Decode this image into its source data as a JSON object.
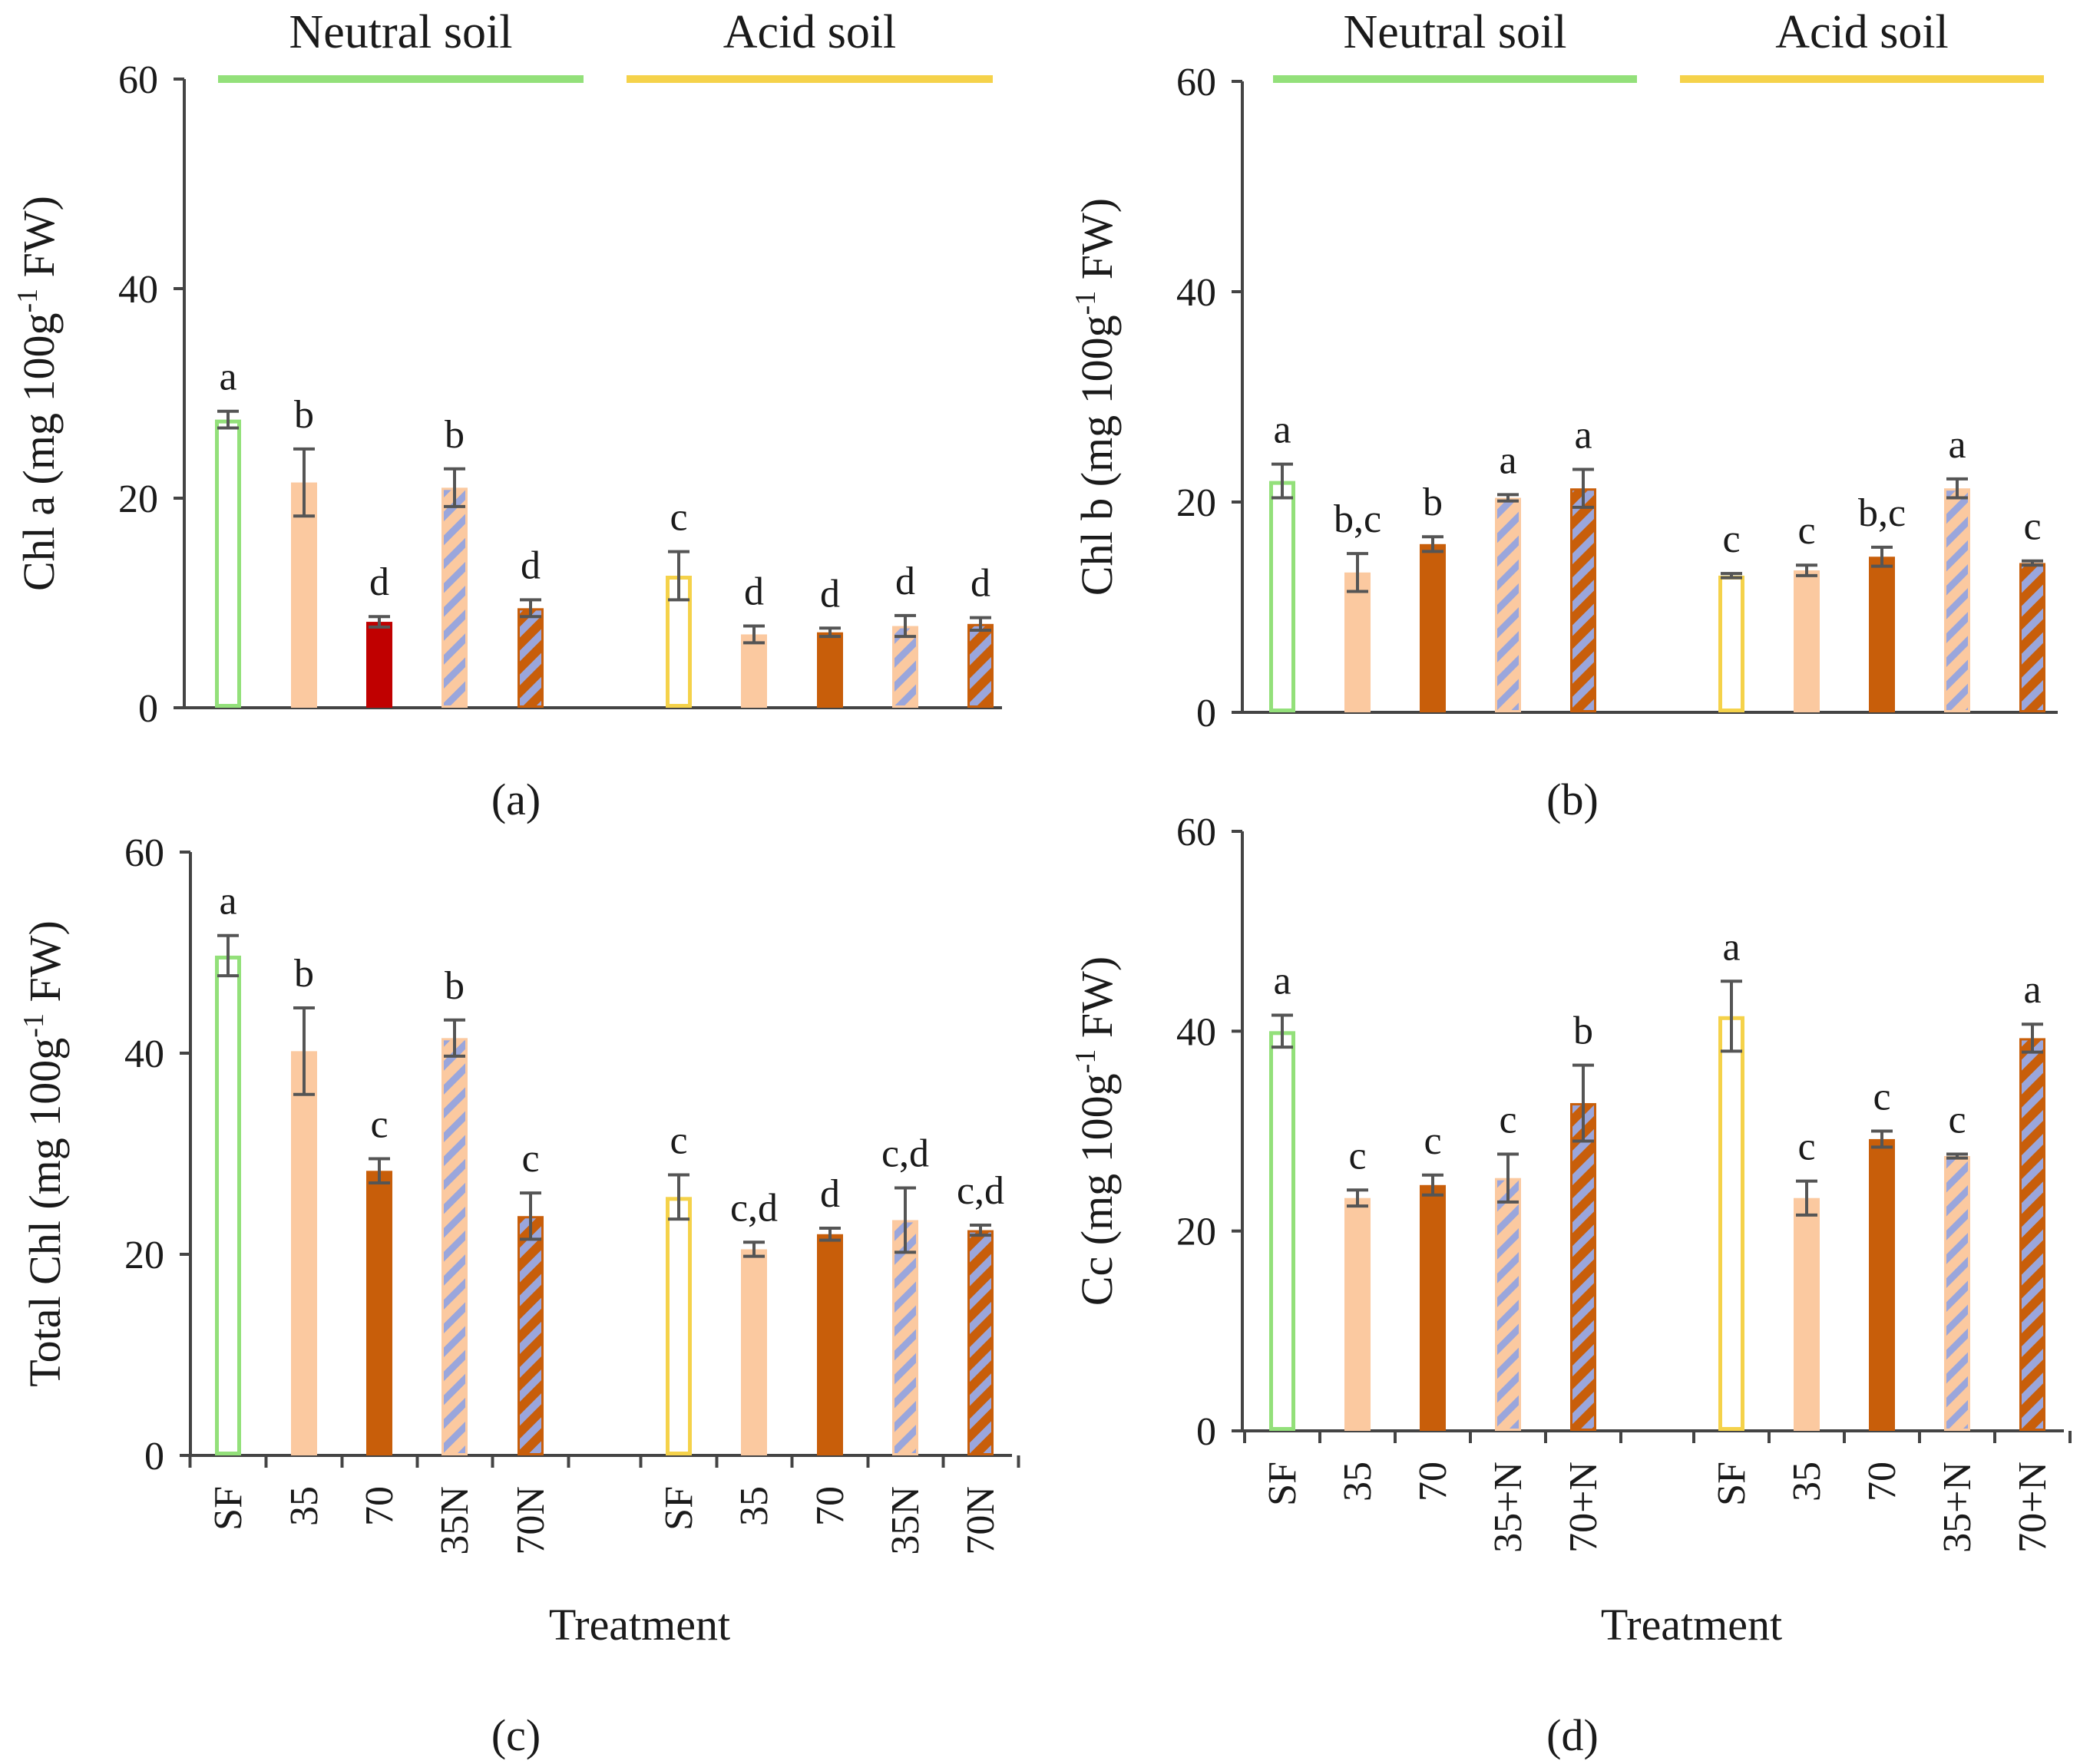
{
  "chart_data": [
    {
      "type": "bar",
      "panel_label": "(a)",
      "ylabel": "Chl a (mg 100g-1 FW)",
      "ylabel_main": "Chl a (mg 100g",
      "ylabel_sup": "-1",
      "ylabel_end": " FW)",
      "ylim": [
        0,
        60
      ],
      "yticks": [
        "0",
        "20",
        "40",
        "60"
      ],
      "xlabel": "",
      "group_titles": [
        "Neutral soil",
        "Acid soil"
      ],
      "categories": [
        "SF",
        "35",
        "70",
        "35N",
        "70N"
      ],
      "show_category_labels": false,
      "groups": [
        {
          "values": [
            27.5,
            21.5,
            8.2,
            21.0,
            9.5
          ],
          "errors": [
            0.8,
            3.2,
            0.5,
            1.8,
            0.8
          ],
          "letters": [
            "a",
            "b",
            "d",
            "b",
            "d"
          ]
        },
        {
          "values": [
            12.6,
            7.0,
            7.2,
            7.8,
            8.0
          ],
          "errors": [
            2.3,
            0.8,
            0.4,
            1.0,
            0.6
          ],
          "letters": [
            "c",
            "d",
            "d",
            "d",
            "d"
          ]
        }
      ]
    },
    {
      "type": "bar",
      "panel_label": "(b)",
      "ylabel": "Chl b (mg 100g-1 FW)",
      "ylabel_main": "Chl b (mg 100g",
      "ylabel_sup": "-1",
      "ylabel_end": " FW)",
      "ylim": [
        0,
        60
      ],
      "yticks": [
        "0",
        "20",
        "40",
        "60"
      ],
      "xlabel": "",
      "group_titles": [
        "Neutral soil",
        "Acid soil"
      ],
      "categories": [
        "SF",
        "35",
        "70",
        "35+N",
        "70+N"
      ],
      "show_category_labels": false,
      "groups": [
        {
          "values": [
            22.0,
            13.3,
            16.0,
            20.4,
            21.3
          ],
          "errors": [
            1.6,
            1.8,
            0.7,
            0.3,
            1.8
          ],
          "letters": [
            "a",
            "b,c",
            "b",
            "a",
            "a"
          ]
        },
        {
          "values": [
            13.0,
            13.5,
            14.8,
            21.3,
            14.2
          ],
          "errors": [
            0.2,
            0.5,
            0.9,
            0.9,
            0.2
          ],
          "letters": [
            "c",
            "c",
            "b,c",
            "a",
            "c"
          ]
        }
      ]
    },
    {
      "type": "bar",
      "panel_label": "(c)",
      "ylabel": "Total Chl (mg 100g-1 FW)",
      "ylabel_main": "Total Chl (mg 100g",
      "ylabel_sup": "-1",
      "ylabel_end": " FW)",
      "ylim": [
        0,
        60
      ],
      "yticks": [
        "0",
        "20",
        "40",
        "60"
      ],
      "xlabel": "Treatment",
      "group_titles": [],
      "categories": [
        "SF",
        "35",
        "70",
        "35N",
        "70N"
      ],
      "show_category_labels": true,
      "groups": [
        {
          "values": [
            49.7,
            40.2,
            28.3,
            41.5,
            23.8
          ],
          "errors": [
            2.0,
            4.3,
            1.2,
            1.8,
            2.3
          ],
          "letters": [
            "a",
            "b",
            "c",
            "b",
            "c"
          ]
        },
        {
          "values": [
            25.7,
            20.5,
            22.0,
            23.4,
            22.4
          ],
          "errors": [
            2.2,
            0.7,
            0.6,
            3.2,
            0.5
          ],
          "letters": [
            "c",
            "c,d",
            "d",
            "c,d",
            "c,d"
          ]
        }
      ]
    },
    {
      "type": "bar",
      "panel_label": "(d)",
      "ylabel": "Cc (mg 100g-1 FW)",
      "ylabel_main": "Cc (mg 100g",
      "ylabel_sup": "-1",
      "ylabel_end": " FW)",
      "ylim": [
        0,
        60
      ],
      "yticks": [
        "0",
        "20",
        "40",
        "60"
      ],
      "xlabel": "Treatment",
      "group_titles": [],
      "categories": [
        "SF",
        "35",
        "70",
        "35+N",
        "70+N"
      ],
      "show_category_labels": true,
      "groups": [
        {
          "values": [
            40.0,
            23.3,
            24.6,
            25.3,
            32.8
          ],
          "errors": [
            1.6,
            0.8,
            1.0,
            2.4,
            3.8
          ],
          "letters": [
            "a",
            "c",
            "c",
            "c",
            "b"
          ]
        },
        {
          "values": [
            41.5,
            23.3,
            29.2,
            27.5,
            39.3
          ],
          "errors": [
            3.5,
            1.7,
            0.8,
            0.2,
            1.4
          ],
          "letters": [
            "a",
            "c",
            "c",
            "c",
            "a"
          ]
        }
      ]
    }
  ],
  "colors": {
    "neutral_line": "#93e07a",
    "acid_line": "#f5d24a",
    "sf_neutral_edge": "#93e07a",
    "sf_acid_edge": "#f5d24a",
    "light_fill": "#fbc9a0",
    "dark_fill": "#c85e0a",
    "highlight_fill": "#c00000",
    "stripe": "#9aa6dc",
    "axis": "#444444",
    "error_bar": "#555555"
  }
}
